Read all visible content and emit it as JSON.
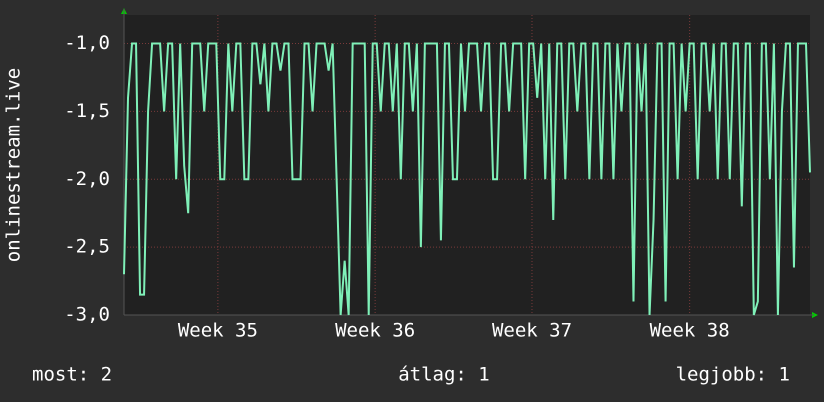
{
  "chart_data": {
    "type": "line",
    "y_label": "onlinestream.live",
    "color": "#7ff0b8",
    "values": [
      -2.7,
      -1.4,
      -1.0,
      -1.0,
      -2.85,
      -2.85,
      -1.5,
      -1.0,
      -1.0,
      -1.0,
      -1.5,
      -1.0,
      -1.0,
      -2.0,
      -1.0,
      -1.9,
      -2.25,
      -1.0,
      -1.0,
      -1.0,
      -1.5,
      -1.0,
      -1.0,
      -1.0,
      -2.0,
      -2.0,
      -1.0,
      -1.5,
      -1.0,
      -1.0,
      -2.0,
      -2.0,
      -1.0,
      -1.0,
      -1.3,
      -1.0,
      -1.5,
      -1.0,
      -1.0,
      -1.2,
      -1.0,
      -1.0,
      -2.0,
      -2.0,
      -2.0,
      -1.0,
      -1.0,
      -1.5,
      -1.0,
      -1.0,
      -1.0,
      -1.2,
      -1.0,
      -2.0,
      -3.0,
      -2.6,
      -3.0,
      -1.0,
      -1.0,
      -1.0,
      -1.0,
      -3.0,
      -1.0,
      -1.0,
      -1.5,
      -1.0,
      -1.0,
      -1.5,
      -1.0,
      -2.0,
      -1.0,
      -1.0,
      -1.5,
      -1.0,
      -2.5,
      -1.0,
      -1.0,
      -1.0,
      -1.0,
      -2.45,
      -1.0,
      -1.0,
      -2.0,
      -2.0,
      -1.0,
      -1.5,
      -1.0,
      -1.0,
      -1.0,
      -1.5,
      -1.0,
      -1.0,
      -2.0,
      -2.0,
      -1.0,
      -1.0,
      -1.5,
      -1.0,
      -1.0,
      -1.0,
      -2.0,
      -1.0,
      -1.0,
      -1.4,
      -1.0,
      -2.0,
      -1.0,
      -2.3,
      -1.0,
      -1.0,
      -2.0,
      -1.0,
      -1.0,
      -1.5,
      -1.0,
      -1.0,
      -2.0,
      -1.0,
      -1.0,
      -2.0,
      -1.0,
      -1.0,
      -2.0,
      -1.0,
      -1.5,
      -1.0,
      -1.0,
      -2.9,
      -1.0,
      -1.5,
      -1.0,
      -3.0,
      -2.3,
      -1.0,
      -1.0,
      -2.9,
      -1.0,
      -1.0,
      -2.0,
      -1.0,
      -1.5,
      -1.0,
      -1.0,
      -2.0,
      -1.0,
      -1.0,
      -1.5,
      -1.0,
      -2.0,
      -1.0,
      -1.0,
      -2.0,
      -1.0,
      -1.0,
      -2.2,
      -1.0,
      -1.0,
      -3.0,
      -2.9,
      -1.0,
      -1.0,
      -2.0,
      -1.0,
      -3.0,
      -1.5,
      -1.0,
      -1.0,
      -2.65,
      -1.0,
      -1.0,
      -1.0,
      -1.95
    ],
    "xlim": [
      0,
      171
    ],
    "xticks": [
      {
        "value": 23.4,
        "label": "Week 35"
      },
      {
        "value": 62.6,
        "label": "Week 36"
      },
      {
        "value": 101.7,
        "label": "Week 37"
      },
      {
        "value": 141.0,
        "label": "Week 38"
      }
    ],
    "ylim": [
      -3.0,
      -0.79
    ],
    "yticks": [
      {
        "value": -3.0,
        "label": "-3,0"
      },
      {
        "value": -2.5,
        "label": "-2,5"
      },
      {
        "value": -2.0,
        "label": "-2,0"
      },
      {
        "value": -1.5,
        "label": "-1,5"
      },
      {
        "value": -1.0,
        "label": "-1,0"
      }
    ],
    "grid": true,
    "legend": [
      "most: 2",
      "átlag: 1",
      "legjobb: 1"
    ]
  }
}
